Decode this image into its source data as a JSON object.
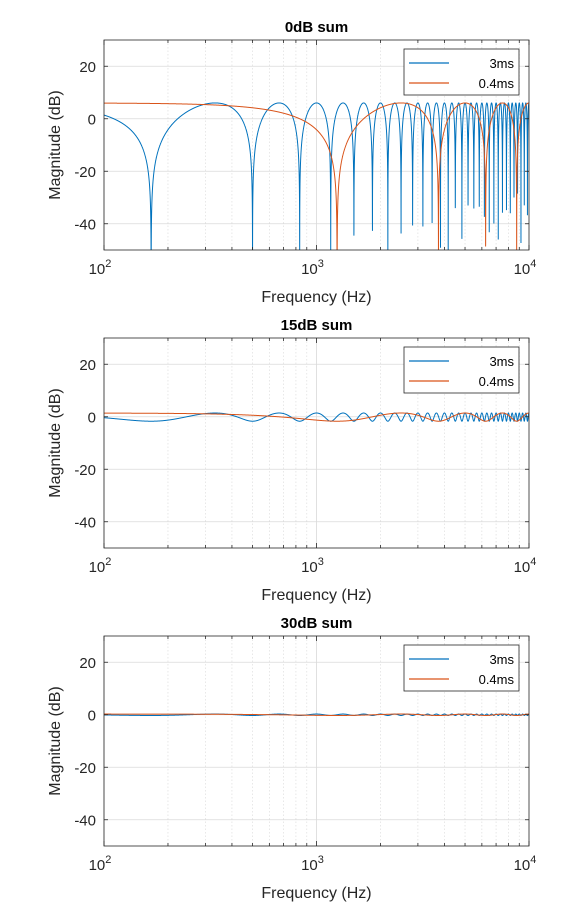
{
  "chart_data": [
    {
      "type": "line",
      "title": "0dB sum",
      "xlabel": "Frequency (Hz)",
      "ylabel": "Magnitude  (dB)",
      "x_scale": "log",
      "xlim": [
        100,
        10000
      ],
      "ylim": [
        -50,
        30
      ],
      "yticks": [
        20,
        0,
        -20,
        -40
      ],
      "xticks": [
        {
          "base": "10",
          "exp": "2"
        },
        {
          "base": "10",
          "exp": "3"
        },
        {
          "base": "10",
          "exp": "4"
        }
      ],
      "grid": true,
      "legend_position": "top-right",
      "series": [
        {
          "name": "3ms",
          "color": "#0072BD",
          "delay_ms": 3,
          "gain_db": 0
        },
        {
          "name": "0.4ms",
          "color": "#D95319",
          "delay_ms": 0.4,
          "gain_db": 0
        }
      ]
    },
    {
      "type": "line",
      "title": "15dB sum",
      "xlabel": "Frequency (Hz)",
      "ylabel": "Magnitude  (dB)",
      "x_scale": "log",
      "xlim": [
        100,
        10000
      ],
      "ylim": [
        -50,
        30
      ],
      "yticks": [
        20,
        0,
        -20,
        -40
      ],
      "xticks": [
        {
          "base": "10",
          "exp": "2"
        },
        {
          "base": "10",
          "exp": "3"
        },
        {
          "base": "10",
          "exp": "4"
        }
      ],
      "grid": true,
      "legend_position": "top-right",
      "series": [
        {
          "name": "3ms",
          "color": "#0072BD",
          "delay_ms": 3,
          "gain_db": -15
        },
        {
          "name": "0.4ms",
          "color": "#D95319",
          "delay_ms": 0.4,
          "gain_db": -15
        }
      ]
    },
    {
      "type": "line",
      "title": "30dB sum",
      "xlabel": "Frequency (Hz)",
      "ylabel": "Magnitude  (dB)",
      "x_scale": "log",
      "xlim": [
        100,
        10000
      ],
      "ylim": [
        -50,
        30
      ],
      "yticks": [
        20,
        0,
        -20,
        -40
      ],
      "xticks": [
        {
          "base": "10",
          "exp": "2"
        },
        {
          "base": "10",
          "exp": "3"
        },
        {
          "base": "10",
          "exp": "4"
        }
      ],
      "grid": true,
      "legend_position": "top-right",
      "series": [
        {
          "name": "3ms",
          "color": "#0072BD",
          "delay_ms": 3,
          "gain_db": -30
        },
        {
          "name": "0.4ms",
          "color": "#D95319",
          "delay_ms": 0.4,
          "gain_db": -30
        }
      ]
    }
  ]
}
